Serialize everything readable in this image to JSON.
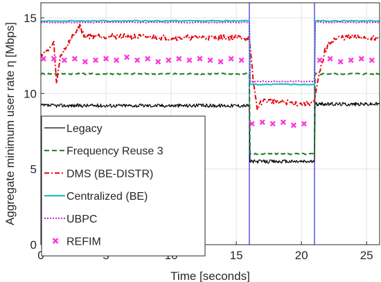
{
  "chart_data": {
    "type": "line",
    "title": "",
    "xlabel": "Time [seconds]",
    "ylabel": "Aggregate minimum user rate  η [Mbps]",
    "xlim": [
      0,
      26
    ],
    "ylim": [
      0,
      16
    ],
    "xticks": [
      0,
      5,
      10,
      15,
      20,
      25
    ],
    "yticks": [
      0,
      5,
      10,
      15
    ],
    "xtick_labels": [
      "0",
      "5",
      "10",
      "15",
      "20",
      "25"
    ],
    "ytick_labels": [
      "0",
      "5",
      "10",
      "15"
    ],
    "grid": true,
    "legend_position": "bottom-left",
    "vertical_markers": [
      16,
      21
    ],
    "series": [
      {
        "name": "Legacy",
        "color": "#000000",
        "style": "solid",
        "points": [
          [
            0,
            9.2
          ],
          [
            16,
            9.2
          ],
          [
            16.05,
            5.5
          ],
          [
            21,
            5.5
          ],
          [
            21.05,
            9.3
          ],
          [
            26,
            9.3
          ]
        ]
      },
      {
        "name": "Frequency Reuse 3",
        "color": "#1a7a1a",
        "style": "dashed",
        "points": [
          [
            0,
            11.3
          ],
          [
            16,
            11.3
          ],
          [
            16.05,
            6.0
          ],
          [
            21,
            6.0
          ],
          [
            21.05,
            11.3
          ],
          [
            26,
            11.3
          ]
        ]
      },
      {
        "name": "DMS (BE-DISTR)",
        "color": "#e8000b",
        "style": "dashdot",
        "points": [
          [
            0,
            12.6
          ],
          [
            0.5,
            12.8
          ],
          [
            1.0,
            13.3
          ],
          [
            1.2,
            10.6
          ],
          [
            1.5,
            12.5
          ],
          [
            2.0,
            13.2
          ],
          [
            3.0,
            14.5
          ],
          [
            3.3,
            13.8
          ],
          [
            5,
            13.8
          ],
          [
            10,
            13.7
          ],
          [
            15.5,
            13.7
          ],
          [
            16,
            13.6
          ],
          [
            16.3,
            10.8
          ],
          [
            16.6,
            9.0
          ],
          [
            17,
            9.5
          ],
          [
            18,
            9.5
          ],
          [
            19,
            9.4
          ],
          [
            20,
            9.3
          ],
          [
            21,
            9.4
          ],
          [
            21.3,
            11.0
          ],
          [
            21.8,
            12.8
          ],
          [
            22.3,
            13.5
          ],
          [
            23,
            13.7
          ],
          [
            26,
            13.7
          ]
        ]
      },
      {
        "name": "Centralized (BE)",
        "color": "#1fc0c0",
        "style": "solid",
        "points": [
          [
            0,
            14.8
          ],
          [
            16,
            14.8
          ],
          [
            16.05,
            10.6
          ],
          [
            21,
            10.6
          ],
          [
            21.05,
            14.8
          ],
          [
            26,
            14.8
          ]
        ]
      },
      {
        "name": "UBPC",
        "color": "#d400d4",
        "style": "dotted",
        "points": [
          [
            0,
            14.7
          ],
          [
            16,
            14.7
          ],
          [
            16.05,
            10.8
          ],
          [
            21,
            10.8
          ],
          [
            21.05,
            14.7
          ],
          [
            26,
            14.7
          ]
        ]
      },
      {
        "name": "REFIM",
        "color": "#ff33dd",
        "style": "markers",
        "marker": "x",
        "points": [
          [
            0.2,
            12.3
          ],
          [
            1.0,
            12.3
          ],
          [
            1.8,
            12.2
          ],
          [
            2.6,
            12.3
          ],
          [
            3.4,
            12.1
          ],
          [
            4.2,
            12.2
          ],
          [
            5.0,
            12.3
          ],
          [
            5.8,
            12.2
          ],
          [
            6.6,
            12.4
          ],
          [
            7.4,
            12.2
          ],
          [
            8.2,
            12.3
          ],
          [
            9.0,
            12.1
          ],
          [
            9.8,
            12.2
          ],
          [
            10.6,
            12.3
          ],
          [
            11.4,
            12.2
          ],
          [
            12.2,
            12.3
          ],
          [
            13.0,
            12.2
          ],
          [
            13.8,
            12.1
          ],
          [
            14.6,
            12.3
          ],
          [
            15.4,
            12.2
          ],
          [
            16.2,
            8.0
          ],
          [
            17.0,
            8.1
          ],
          [
            17.8,
            8.0
          ],
          [
            18.6,
            8.1
          ],
          [
            19.4,
            7.9
          ],
          [
            20.2,
            8.0
          ],
          [
            21.4,
            12.2
          ],
          [
            22.2,
            12.3
          ],
          [
            23.0,
            12.1
          ],
          [
            23.8,
            12.2
          ],
          [
            24.6,
            12.3
          ],
          [
            25.4,
            12.2
          ]
        ]
      }
    ]
  }
}
